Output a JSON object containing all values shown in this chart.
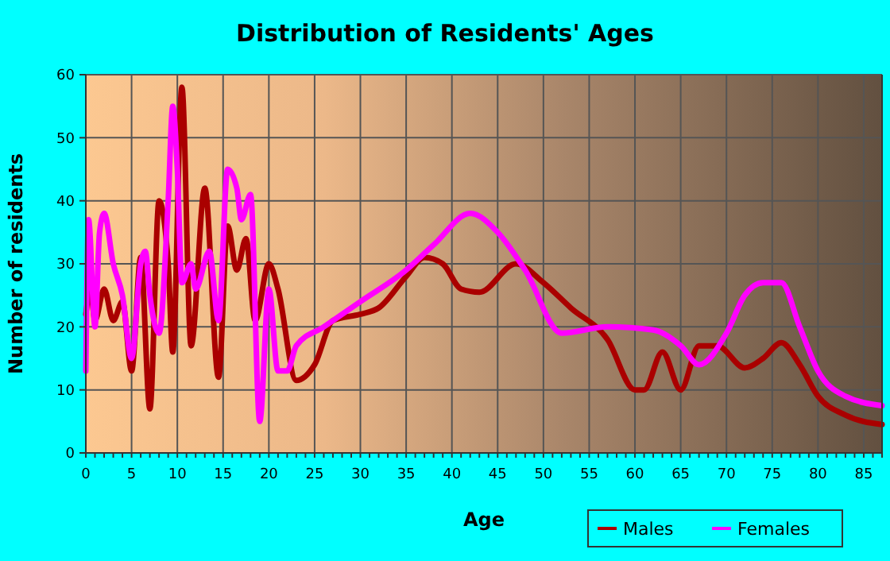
{
  "chart_data": {
    "type": "line",
    "title": "Distribution of Residents' Ages",
    "xlabel": "Age",
    "ylabel": "Number of residents",
    "xlim": [
      0,
      87
    ],
    "xticks": [
      0,
      5,
      10,
      15,
      20,
      25,
      30,
      35,
      40,
      45,
      50,
      55,
      60,
      65,
      70,
      75,
      80,
      85
    ],
    "ylim": [
      0,
      60
    ],
    "yticks": [
      0,
      10,
      20,
      30,
      40,
      50,
      60
    ],
    "grid": true,
    "legend": "bottom right",
    "line_style": "solid",
    "marker": "none",
    "series": [
      {
        "name": "Males",
        "color": "#aa0000",
        "x": [
          0,
          0.5,
          1,
          2,
          3,
          4,
          5,
          6,
          7,
          8,
          9,
          9.5,
          10.5,
          11.5,
          13,
          14.5,
          15.5,
          16.5,
          17.5,
          18.5,
          20,
          21,
          23,
          25,
          27,
          30,
          32,
          35,
          37,
          39,
          41,
          43,
          47,
          50,
          53,
          57,
          60,
          61,
          63,
          65,
          67,
          69,
          72,
          74,
          76,
          78,
          80,
          83,
          87
        ],
        "values": [
          22,
          26,
          21,
          26,
          21,
          24,
          13,
          31,
          7,
          40,
          30,
          16,
          58,
          17,
          42,
          12,
          36,
          29,
          34,
          21,
          30,
          26,
          11.5,
          14,
          21,
          22,
          23,
          28,
          31,
          30,
          26,
          25.5,
          30,
          27,
          23,
          18,
          10,
          10,
          16,
          10,
          17,
          17,
          13.5,
          15,
          17.5,
          14,
          9,
          6,
          4.5
        ]
      },
      {
        "name": "Females",
        "color": "#ff00ff",
        "x": [
          0,
          0.3,
          1,
          1.5,
          2,
          3,
          4,
          5,
          6,
          6.5,
          7,
          8,
          9,
          9.5,
          10,
          10.5,
          11.5,
          12,
          13.5,
          14.5,
          15.5,
          16.5,
          17,
          18,
          19,
          20,
          21,
          22,
          23,
          26,
          30,
          35,
          38,
          42,
          45,
          48,
          52,
          57,
          62,
          65,
          67,
          70,
          72,
          74,
          76,
          78,
          80,
          83,
          87
        ],
        "values": [
          13,
          37,
          20,
          35,
          38,
          30,
          25,
          15,
          30,
          32,
          25,
          19,
          40,
          55,
          45,
          27,
          30,
          26,
          32,
          21,
          45,
          42,
          37,
          41,
          5,
          26,
          13,
          13,
          17,
          20,
          24,
          29,
          33,
          38,
          35,
          29,
          19,
          20,
          19.5,
          17,
          14,
          19,
          25,
          27,
          27,
          20,
          13,
          9,
          7.5
        ]
      }
    ]
  }
}
